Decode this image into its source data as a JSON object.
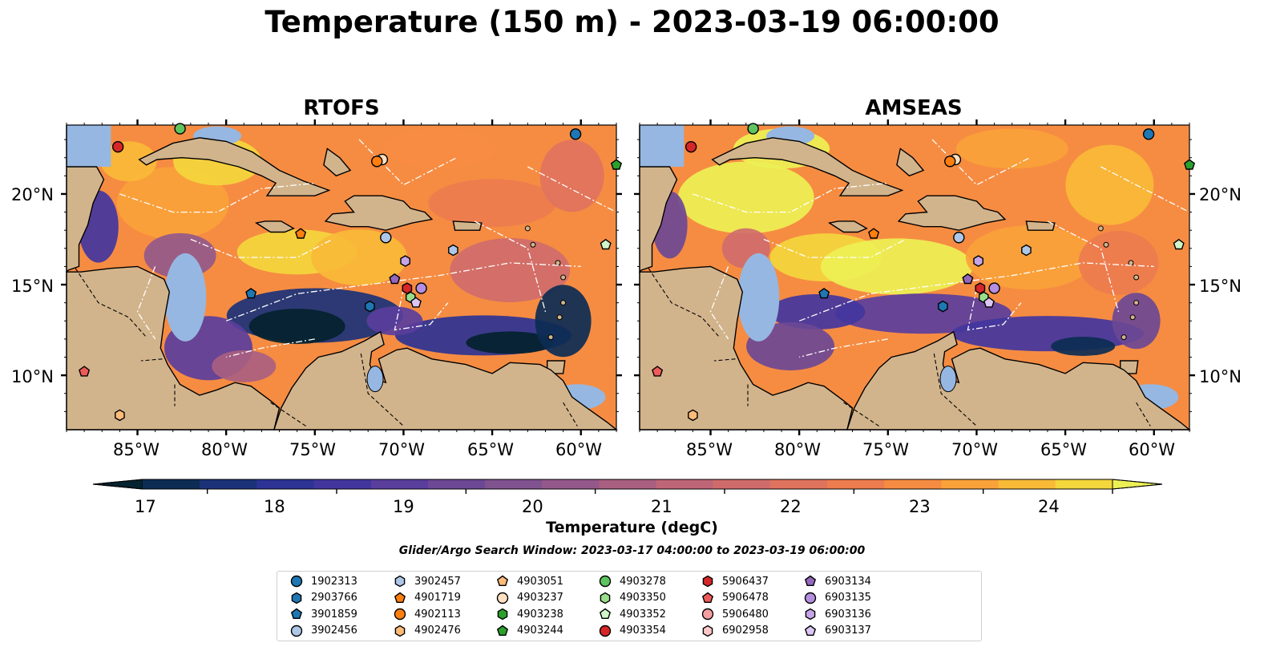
{
  "title": "Temperature (150 m) - 2023-03-19 06:00:00",
  "panels": [
    {
      "id": "rtofs",
      "title": "RTOFS"
    },
    {
      "id": "amseas",
      "title": "AMSEAS"
    }
  ],
  "lon_ticks": [
    "85°W",
    "80°W",
    "75°W",
    "70°W",
    "65°W",
    "60°W"
  ],
  "lat_ticks": [
    "20°N",
    "15°N",
    "10°N"
  ],
  "colorbar": {
    "label": "Temperature (degC)",
    "ticks": [
      "17",
      "18",
      "19",
      "20",
      "21",
      "22",
      "23",
      "24"
    ],
    "colors": [
      "#04222f",
      "#0c2c54",
      "#1b3278",
      "#2d3394",
      "#42369e",
      "#5a3e9c",
      "#6d4895",
      "#80528f",
      "#94598a",
      "#a95f80",
      "#be6677",
      "#cf6c6b",
      "#df735d",
      "#ed7c4f",
      "#f68c42",
      "#faa23a",
      "#f8ba37",
      "#f4d63d",
      "#edf055"
    ],
    "ocean_color": "#96b7e1",
    "land_color": "#d2b48c"
  },
  "search_window": "Glider/Argo Search Window: 2023-03-17 04:00:00 to 2023-03-19 06:00:00",
  "legend": [
    {
      "id": "1902313",
      "shape": "circle",
      "color": "#1f77b4"
    },
    {
      "id": "2903766",
      "shape": "hexagon",
      "color": "#1f77b4"
    },
    {
      "id": "3901859",
      "shape": "pentagon",
      "color": "#1f77b4"
    },
    {
      "id": "3902456",
      "shape": "circle",
      "color": "#aec7e8"
    },
    {
      "id": "3902457",
      "shape": "hexagon",
      "color": "#aec7e8"
    },
    {
      "id": "4901719",
      "shape": "pentagon",
      "color": "#ff7f0e"
    },
    {
      "id": "4902113",
      "shape": "circle",
      "color": "#ff7f0e"
    },
    {
      "id": "4902476",
      "shape": "hexagon",
      "color": "#ffbb78"
    },
    {
      "id": "4903051",
      "shape": "pentagon",
      "color": "#ffbb78"
    },
    {
      "id": "4903237",
      "shape": "circle",
      "color": "#ffe0c0"
    },
    {
      "id": "4903238",
      "shape": "hexagon",
      "color": "#2ca02c"
    },
    {
      "id": "4903244",
      "shape": "pentagon",
      "color": "#2ca02c"
    },
    {
      "id": "4903278",
      "shape": "circle",
      "color": "#5fc45f"
    },
    {
      "id": "4903350",
      "shape": "hexagon",
      "color": "#98df8a"
    },
    {
      "id": "4903352",
      "shape": "pentagon",
      "color": "#d0f5c8"
    },
    {
      "id": "4903354",
      "shape": "circle",
      "color": "#d62728"
    },
    {
      "id": "5906437",
      "shape": "hexagon",
      "color": "#d62728"
    },
    {
      "id": "5906478",
      "shape": "pentagon",
      "color": "#ee5a5a"
    },
    {
      "id": "5906480",
      "shape": "circle",
      "color": "#f4a0a0"
    },
    {
      "id": "6902958",
      "shape": "hexagon",
      "color": "#ffc8c8"
    },
    {
      "id": "6903134",
      "shape": "pentagon",
      "color": "#9467bd"
    },
    {
      "id": "6903135",
      "shape": "circle",
      "color": "#b48ee0"
    },
    {
      "id": "6903136",
      "shape": "hexagon",
      "color": "#c5a5e8"
    },
    {
      "id": "6903137",
      "shape": "pentagon",
      "color": "#dcc6f5"
    }
  ],
  "floats": [
    {
      "id": "1902313",
      "lon": -60.3,
      "lat": 23.3
    },
    {
      "id": "4903354",
      "lon": -86.1,
      "lat": 22.6
    },
    {
      "id": "4903278",
      "lon": -82.6,
      "lat": 23.6
    },
    {
      "id": "4903237",
      "lon": -71.2,
      "lat": 21.9
    },
    {
      "id": "4902113",
      "lon": -71.5,
      "lat": 21.8
    },
    {
      "id": "4903244",
      "lon": -58.0,
      "lat": 21.6
    },
    {
      "id": "4901719",
      "lon": -75.8,
      "lat": 17.8
    },
    {
      "id": "3902456",
      "lon": -71.0,
      "lat": 17.6
    },
    {
      "id": "3902457",
      "lon": -67.2,
      "lat": 16.9
    },
    {
      "id": "4903352",
      "lon": -58.6,
      "lat": 17.2
    },
    {
      "id": "6903136",
      "lon": -69.9,
      "lat": 16.3
    },
    {
      "id": "6903134",
      "lon": -70.5,
      "lat": 15.3
    },
    {
      "id": "5906437",
      "lon": -69.8,
      "lat": 14.8
    },
    {
      "id": "6903135",
      "lon": -69.0,
      "lat": 14.8
    },
    {
      "id": "4903350",
      "lon": -69.6,
      "lat": 14.3
    },
    {
      "id": "6903137",
      "lon": -69.3,
      "lat": 14.0
    },
    {
      "id": "3901859",
      "lon": -78.6,
      "lat": 14.5
    },
    {
      "id": "2903766",
      "lon": -71.9,
      "lat": 13.8
    },
    {
      "id": "5906478",
      "lon": -88.0,
      "lat": 10.2
    },
    {
      "id": "4902476",
      "lon": -86.0,
      "lat": 7.8
    }
  ]
}
